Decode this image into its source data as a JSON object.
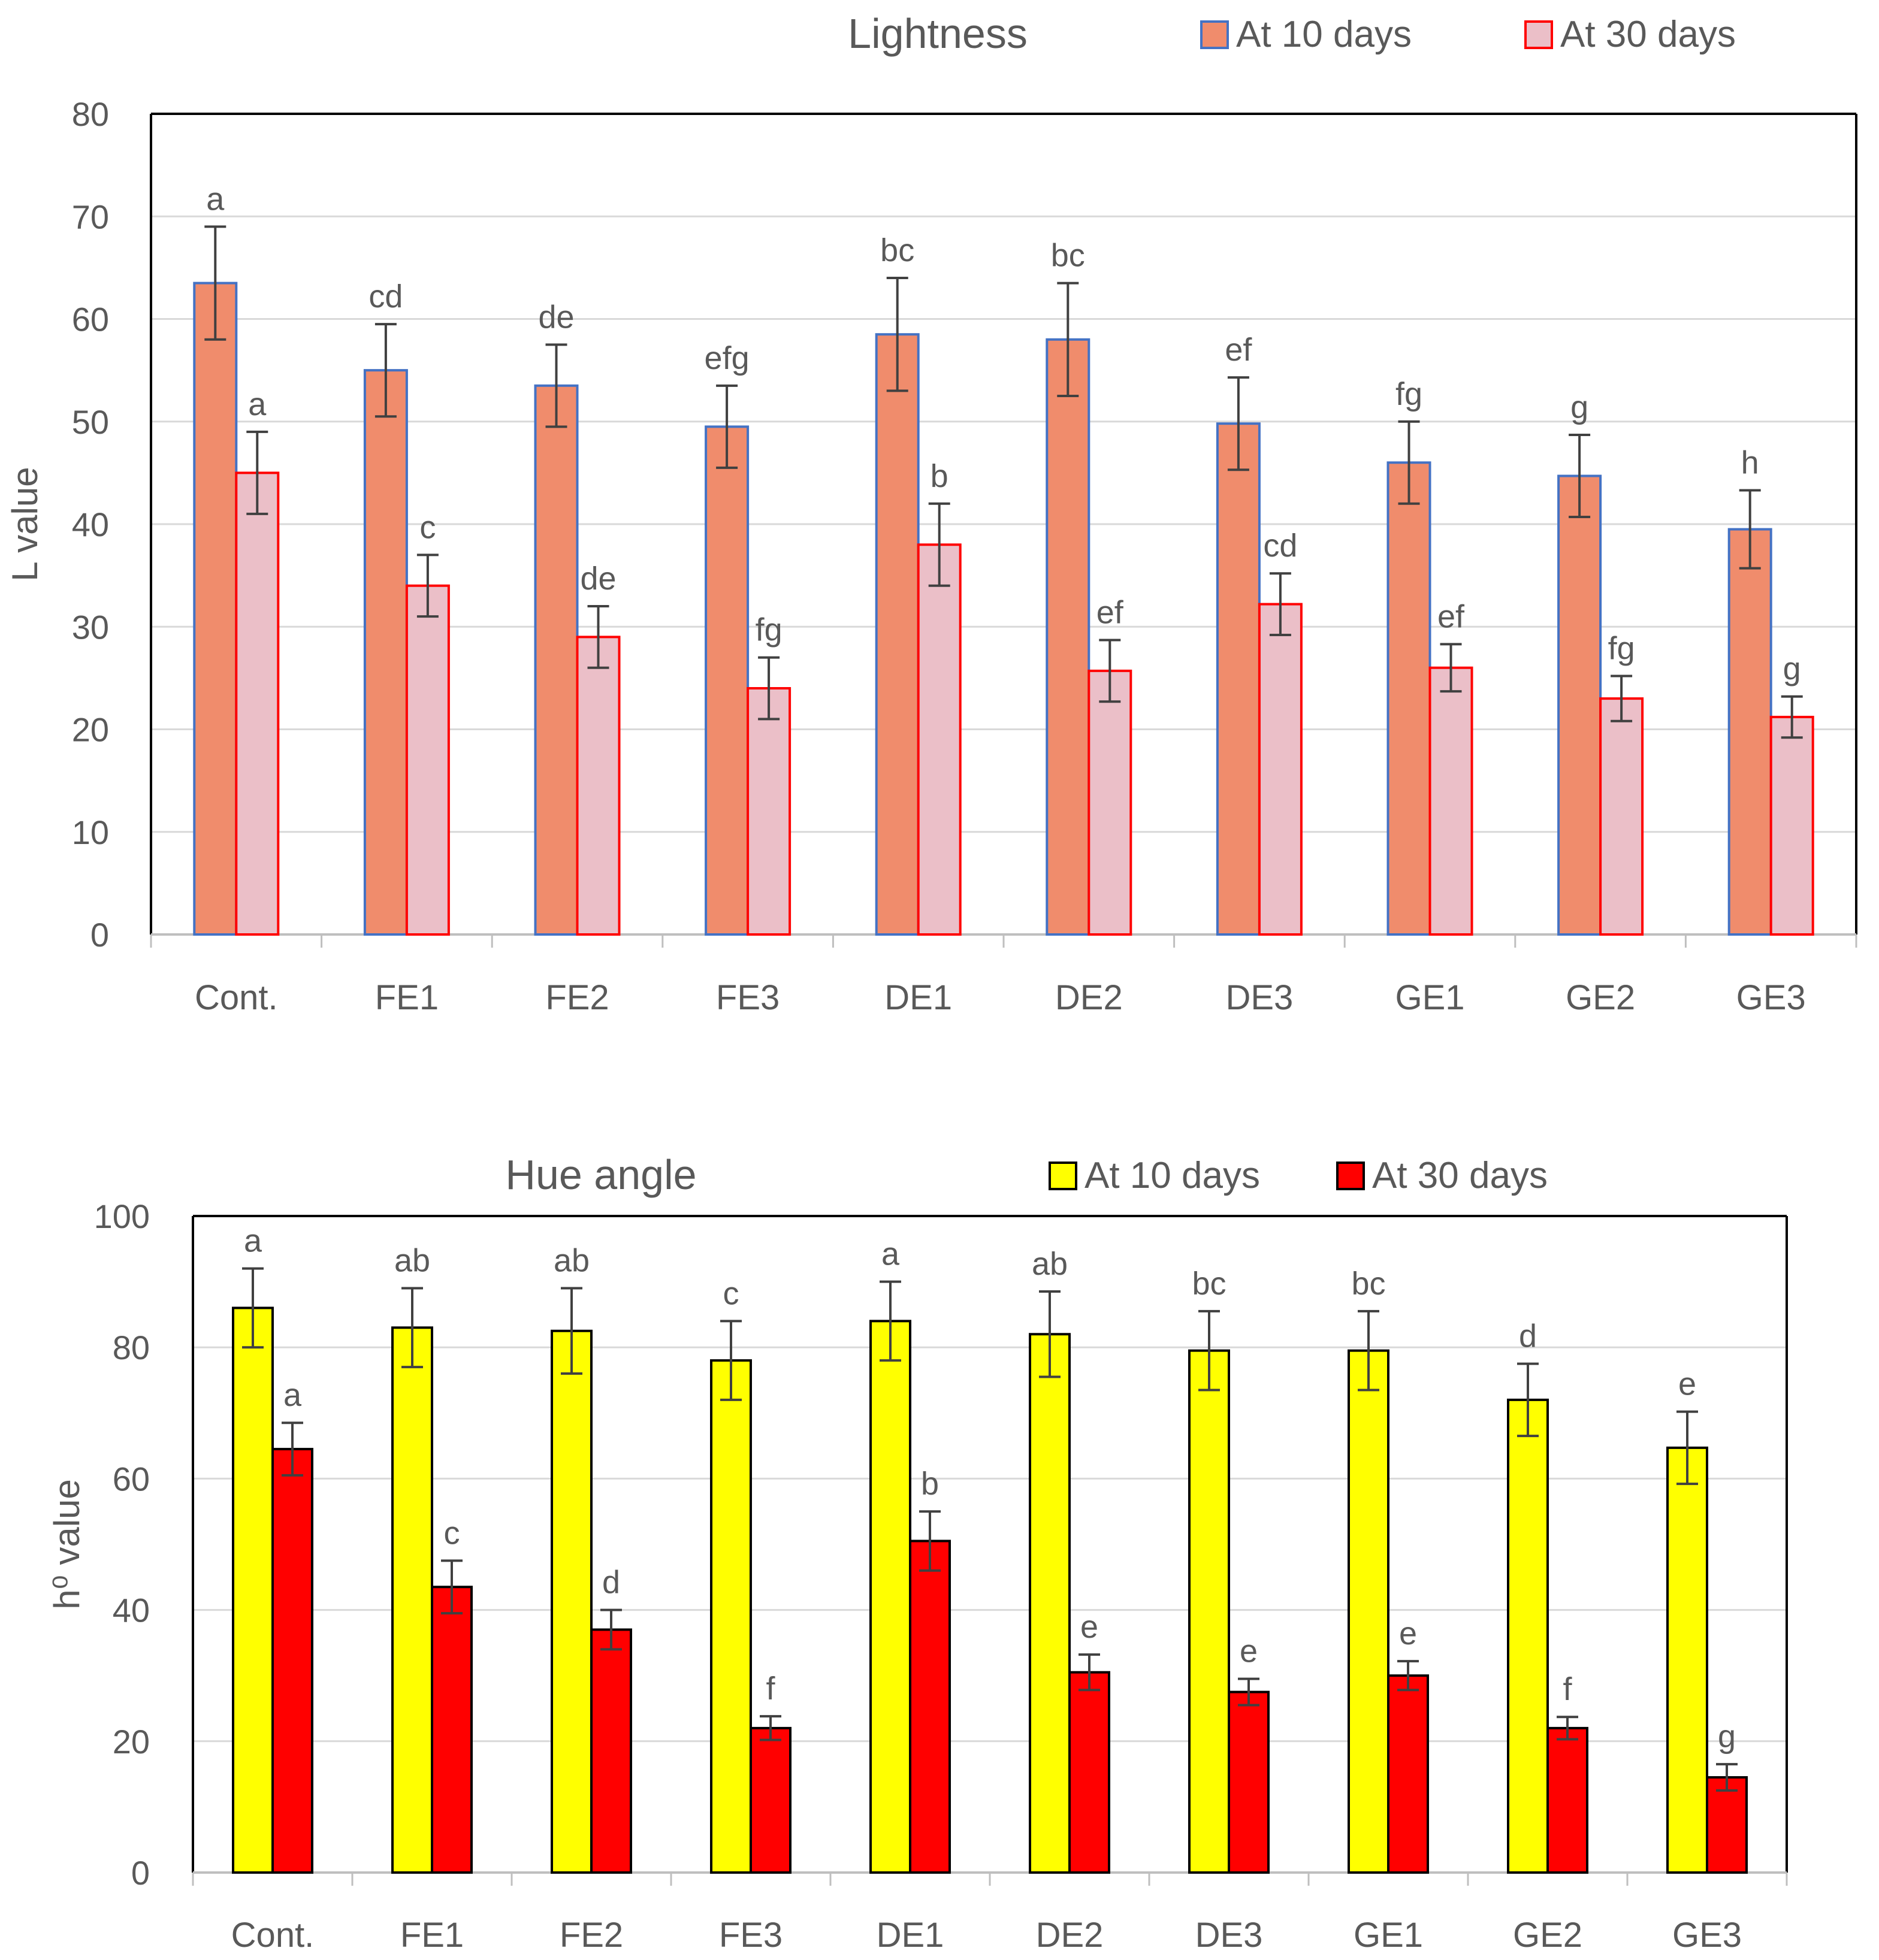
{
  "chart_data": [
    {
      "type": "bar",
      "title": "Lightness",
      "xlabel": "",
      "ylabel": "L value",
      "ylim": [
        0,
        80
      ],
      "yticks": [
        0,
        10,
        20,
        30,
        40,
        50,
        60,
        70,
        80
      ],
      "categories": [
        "Cont.",
        "FE1",
        "FE2",
        "FE3",
        "DE1",
        "DE2",
        "DE3",
        "GE1",
        "GE2",
        "GE3"
      ],
      "legend_position": "top-right",
      "series": [
        {
          "name": "At 10 days",
          "fill": "#F08C6C",
          "stroke": "#4472C4",
          "values": [
            63.5,
            55,
            53.5,
            49.5,
            58.5,
            58,
            49.8,
            46,
            44.7,
            39.5
          ],
          "errors": [
            5.5,
            4.5,
            4,
            4,
            5.5,
            5.5,
            4.5,
            4,
            4,
            3.8
          ],
          "labels": [
            "a",
            "cd",
            "de",
            "efg",
            "bc",
            "bc",
            "ef",
            "fg",
            "g",
            "h"
          ]
        },
        {
          "name": "At 30 days",
          "fill": "#EBBFC8",
          "stroke": "#FF0000",
          "values": [
            45,
            34,
            29,
            24,
            38,
            25.7,
            32.2,
            26,
            23,
            21.2
          ],
          "errors": [
            4,
            3,
            3,
            3,
            4,
            3,
            3,
            2.3,
            2.2,
            2
          ]
        }
      ],
      "series_labels_30": [
        "a",
        "c",
        "de",
        "fg",
        "b",
        "ef",
        "cd",
        "ef",
        "fg",
        "g"
      ]
    },
    {
      "type": "bar",
      "title": "Hue angle",
      "xlabel": "",
      "ylabel": "h⁰ value",
      "ylim": [
        0,
        100
      ],
      "yticks": [
        0,
        20,
        40,
        60,
        80,
        100
      ],
      "categories": [
        "Cont.",
        "FE1",
        "FE2",
        "FE3",
        "DE1",
        "DE2",
        "DE3",
        "GE1",
        "GE2",
        "GE3"
      ],
      "legend_position": "top-right",
      "series": [
        {
          "name": "At 10 days",
          "fill": "#FFFF00",
          "stroke": "#000000",
          "values": [
            86,
            83,
            82.5,
            78,
            84,
            82,
            79.5,
            79.5,
            72,
            64.7
          ],
          "errors": [
            6,
            6,
            6.5,
            6,
            6,
            6.5,
            6,
            6,
            5.5,
            5.5
          ],
          "labels": [
            "a",
            "ab",
            "ab",
            "c",
            "a",
            "ab",
            "bc",
            "bc",
            "d",
            "e"
          ]
        },
        {
          "name": "At 30 days",
          "fill": "#FF0000",
          "stroke": "#000000",
          "values": [
            64.5,
            43.5,
            37,
            22,
            50.5,
            30.5,
            27.5,
            30,
            22,
            14.5
          ],
          "errors": [
            4,
            4,
            3,
            1.8,
            4.5,
            2.7,
            2,
            2.2,
            1.7,
            2
          ],
          "labels": [
            "a",
            "c",
            "d",
            "f",
            "b",
            "e",
            "e",
            "e",
            "f",
            "g"
          ]
        }
      ]
    }
  ]
}
